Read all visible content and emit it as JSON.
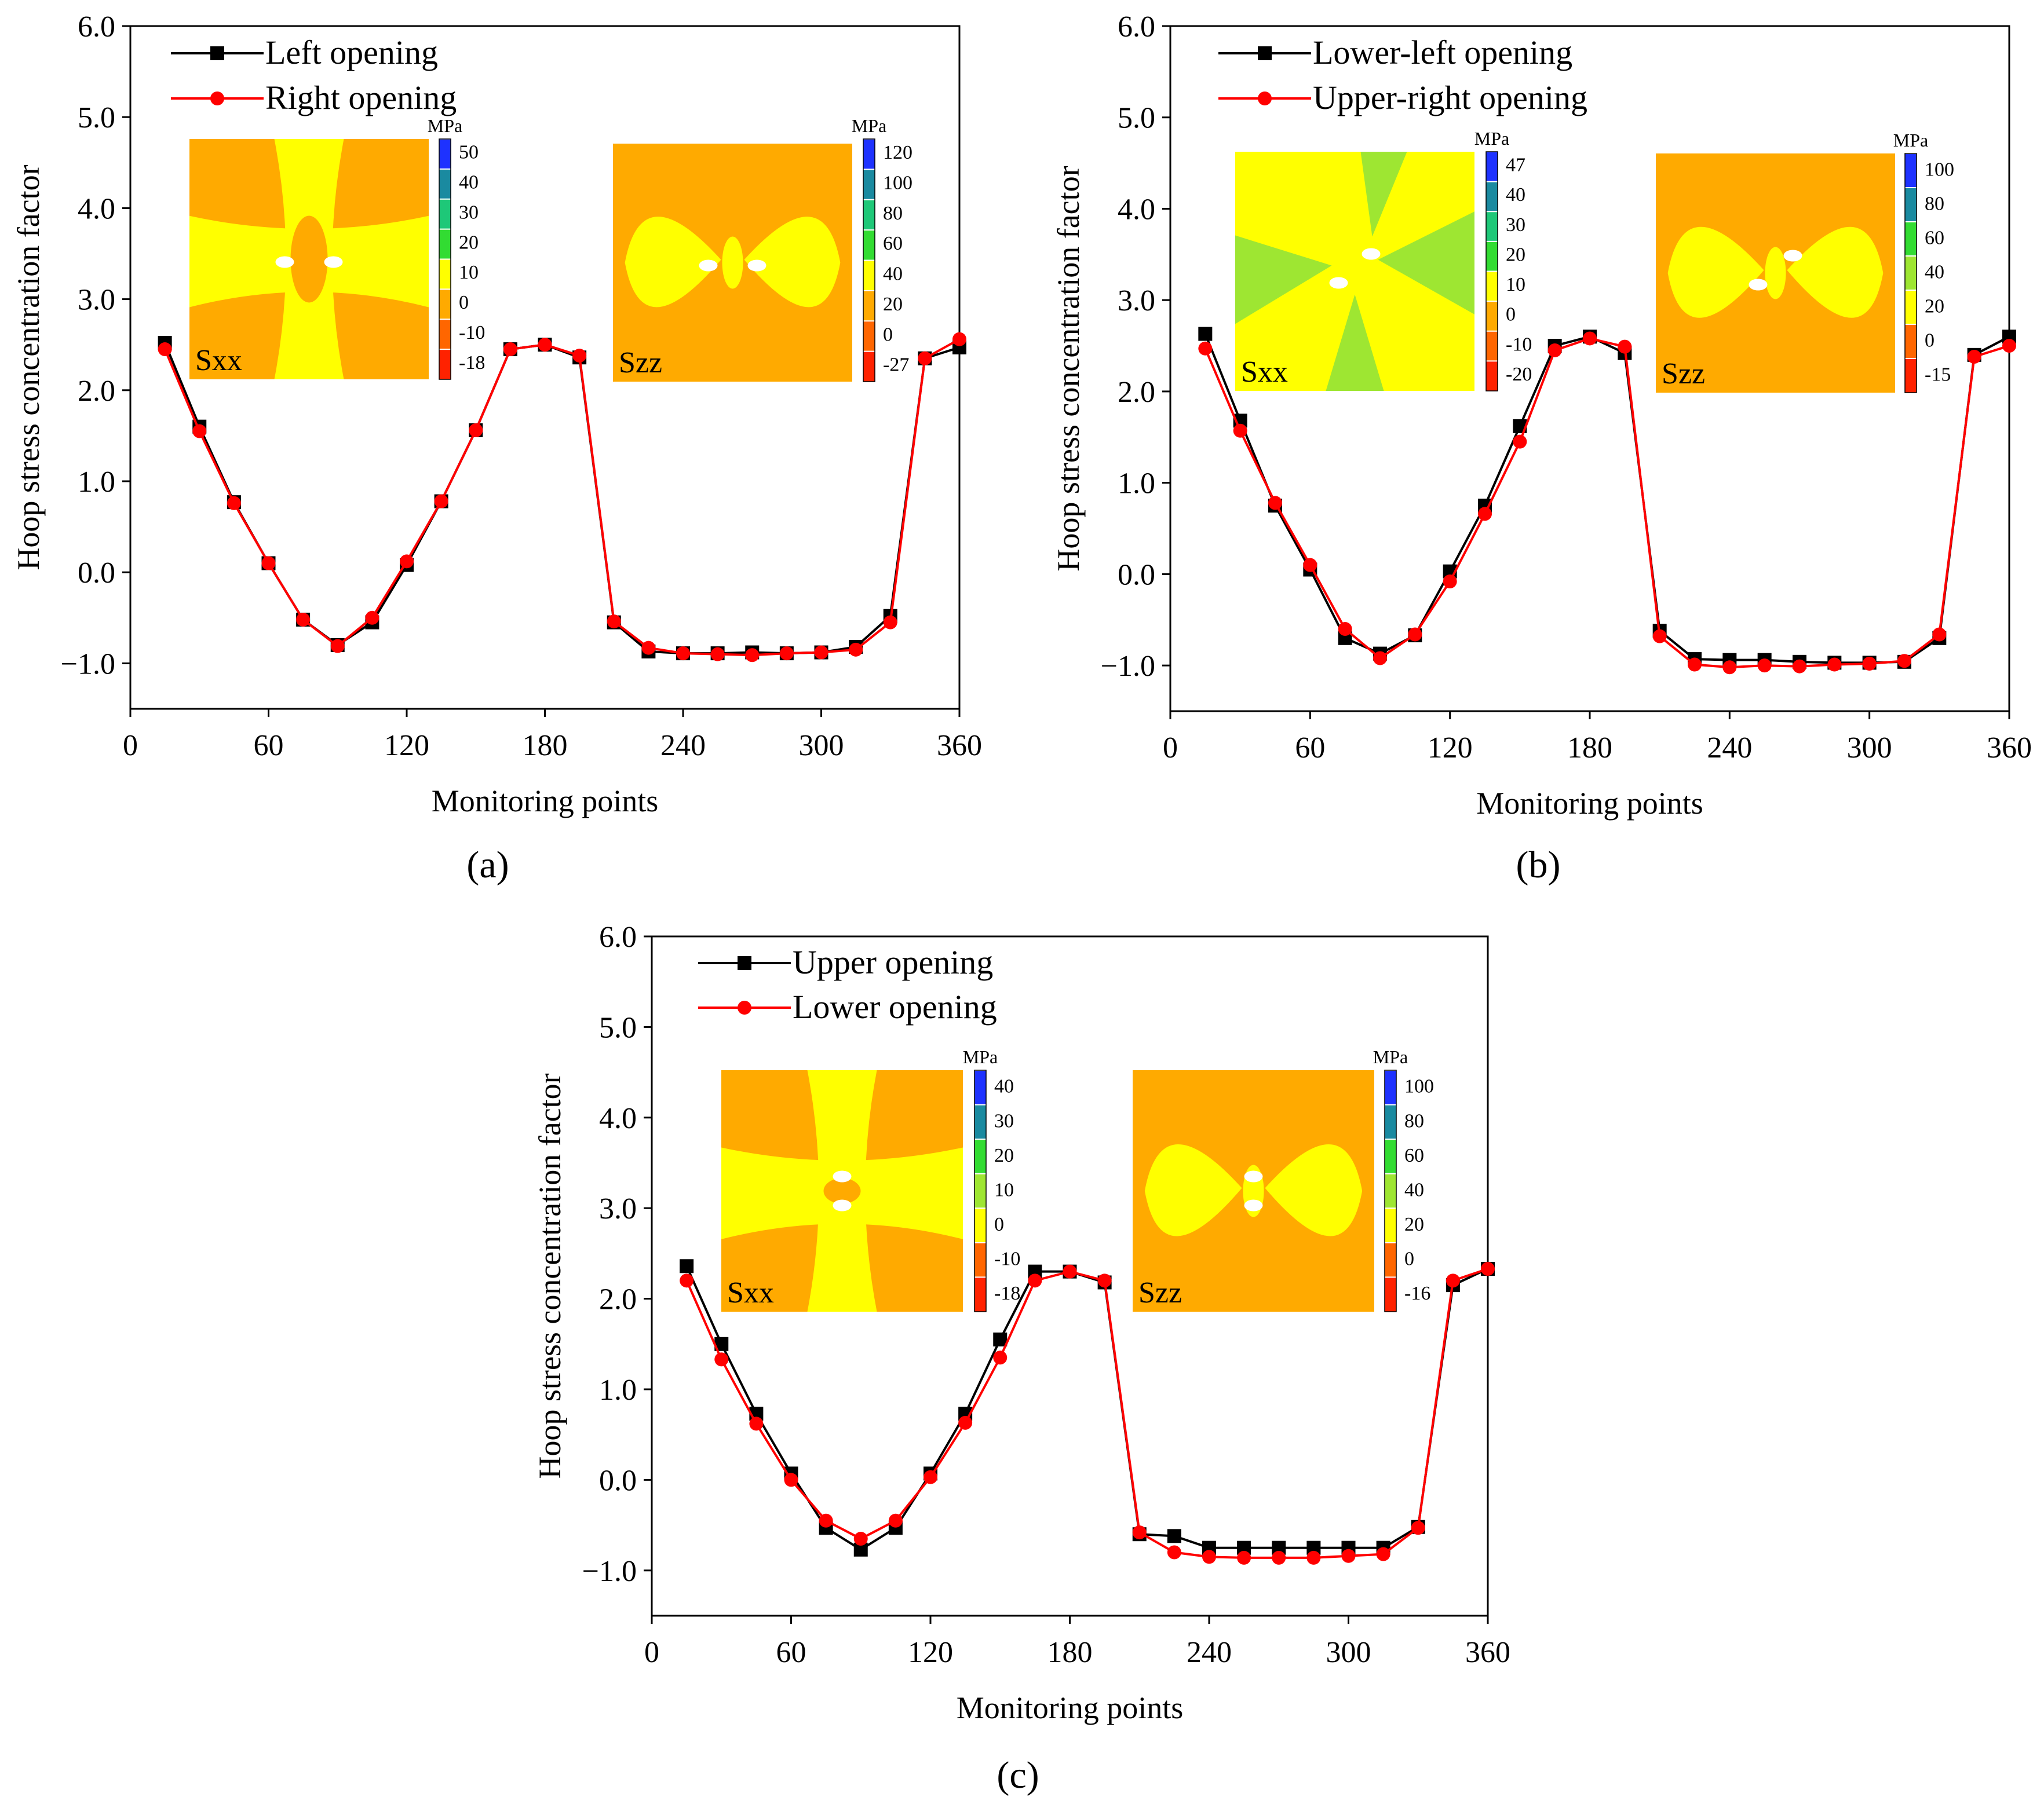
{
  "chart_data": [
    {
      "type": "line",
      "panel_label": "(a)",
      "xlabel": "Monitoring points",
      "ylabel": "Hoop stress concentration factor",
      "xlim": [
        0,
        360
      ],
      "ylim": [
        -1.5,
        6.0
      ],
      "x_ticks": [
        "0",
        "60",
        "120",
        "180",
        "240",
        "300",
        "360"
      ],
      "y_ticks": [
        "−1.0",
        "0.0",
        "1.0",
        "2.0",
        "3.0",
        "4.0",
        "5.0",
        "6.0"
      ],
      "x": [
        15,
        30,
        45,
        60,
        75,
        90,
        105,
        120,
        135,
        150,
        165,
        180,
        195,
        210,
        225,
        240,
        255,
        270,
        285,
        300,
        315,
        330,
        345,
        360
      ],
      "series": [
        {
          "name": "Left opening",
          "color": "#000000",
          "marker": "square",
          "values": [
            2.52,
            1.6,
            0.77,
            0.1,
            -0.52,
            -0.8,
            -0.55,
            0.08,
            0.78,
            1.56,
            2.45,
            2.5,
            2.36,
            -0.55,
            -0.87,
            -0.89,
            -0.89,
            -0.88,
            -0.89,
            -0.88,
            -0.82,
            -0.48,
            2.35,
            2.47
          ]
        },
        {
          "name": "Right opening",
          "color": "#ff0000",
          "marker": "circle",
          "values": [
            2.45,
            1.55,
            0.76,
            0.1,
            -0.52,
            -0.81,
            -0.5,
            0.12,
            0.78,
            1.56,
            2.45,
            2.5,
            2.38,
            -0.54,
            -0.83,
            -0.89,
            -0.9,
            -0.91,
            -0.89,
            -0.88,
            -0.85,
            -0.55,
            2.35,
            2.56
          ]
        }
      ],
      "insets": [
        {
          "label": "Sxx",
          "unit": "MPa",
          "ticks": [
            "50",
            "40",
            "30",
            "20",
            "10",
            "0",
            "-10",
            "-18"
          ]
        },
        {
          "label": "Szz",
          "unit": "MPa",
          "ticks": [
            "120",
            "100",
            "80",
            "60",
            "40",
            "20",
            "0",
            "-27"
          ]
        }
      ]
    },
    {
      "type": "line",
      "panel_label": "(b)",
      "xlabel": "Monitoring points",
      "ylabel": "Hoop stress concentration factor",
      "xlim": [
        0,
        360
      ],
      "ylim": [
        -1.5,
        6.0
      ],
      "x_ticks": [
        "0",
        "60",
        "120",
        "180",
        "240",
        "300",
        "360"
      ],
      "y_ticks": [
        "−1.0",
        "0.0",
        "1.0",
        "2.0",
        "3.0",
        "4.0",
        "5.0",
        "6.0"
      ],
      "x": [
        15,
        30,
        45,
        60,
        75,
        90,
        105,
        120,
        135,
        150,
        165,
        180,
        195,
        210,
        225,
        240,
        255,
        270,
        285,
        300,
        315,
        330,
        345,
        360
      ],
      "series": [
        {
          "name": "Lower-left opening",
          "color": "#000000",
          "marker": "square",
          "values": [
            2.63,
            1.68,
            0.75,
            0.05,
            -0.7,
            -0.87,
            -0.67,
            0.03,
            0.75,
            1.62,
            2.5,
            2.6,
            2.42,
            -0.62,
            -0.93,
            -0.94,
            -0.94,
            -0.96,
            -0.97,
            -0.97,
            -0.96,
            -0.7,
            2.4,
            2.6
          ]
        },
        {
          "name": "Upper-right opening",
          "color": "#ff0000",
          "marker": "circle",
          "values": [
            2.47,
            1.57,
            0.78,
            0.1,
            -0.6,
            -0.92,
            -0.66,
            -0.08,
            0.66,
            1.45,
            2.45,
            2.58,
            2.49,
            -0.68,
            -0.99,
            -1.02,
            -1.0,
            -1.01,
            -0.99,
            -0.98,
            -0.95,
            -0.66,
            2.38,
            2.5
          ]
        }
      ],
      "insets": [
        {
          "label": "Sxx",
          "unit": "MPa",
          "ticks": [
            "47",
            "40",
            "30",
            "20",
            "10",
            "0",
            "-10",
            "-20"
          ]
        },
        {
          "label": "Szz",
          "unit": "MPa",
          "ticks": [
            "100",
            "80",
            "60",
            "40",
            "20",
            "0",
            "-15"
          ]
        }
      ]
    },
    {
      "type": "line",
      "panel_label": "(c)",
      "xlabel": "Monitoring points",
      "ylabel": "Hoop stress concentration factor",
      "xlim": [
        0,
        360
      ],
      "ylim": [
        -1.5,
        6.0
      ],
      "x_ticks": [
        "0",
        "60",
        "120",
        "180",
        "240",
        "300",
        "360"
      ],
      "y_ticks": [
        "−1.0",
        "0.0",
        "1.0",
        "2.0",
        "3.0",
        "4.0",
        "5.0",
        "6.0"
      ],
      "x": [
        15,
        30,
        45,
        60,
        75,
        90,
        105,
        120,
        135,
        150,
        165,
        180,
        195,
        210,
        225,
        240,
        255,
        270,
        285,
        300,
        315,
        330,
        345,
        360
      ],
      "series": [
        {
          "name": "Upper opening",
          "color": "#000000",
          "marker": "square",
          "values": [
            2.36,
            1.5,
            0.73,
            0.07,
            -0.53,
            -0.77,
            -0.53,
            0.07,
            0.73,
            1.55,
            2.3,
            2.3,
            2.18,
            -0.6,
            -0.62,
            -0.75,
            -0.75,
            -0.75,
            -0.75,
            -0.75,
            -0.75,
            -0.52,
            2.15,
            2.33
          ]
        },
        {
          "name": "Lower opening",
          "color": "#ff0000",
          "marker": "circle",
          "values": [
            2.2,
            1.33,
            0.62,
            0.0,
            -0.45,
            -0.65,
            -0.45,
            0.03,
            0.63,
            1.35,
            2.2,
            2.3,
            2.2,
            -0.58,
            -0.8,
            -0.85,
            -0.86,
            -0.86,
            -0.86,
            -0.84,
            -0.82,
            -0.53,
            2.2,
            2.33
          ]
        }
      ],
      "insets": [
        {
          "label": "Sxx",
          "unit": "MPa",
          "ticks": [
            "40",
            "30",
            "20",
            "10",
            "0",
            "-10",
            "-18"
          ]
        },
        {
          "label": "Szz",
          "unit": "MPa",
          "ticks": [
            "100",
            "80",
            "60",
            "40",
            "20",
            "0",
            "-16"
          ]
        }
      ]
    }
  ]
}
